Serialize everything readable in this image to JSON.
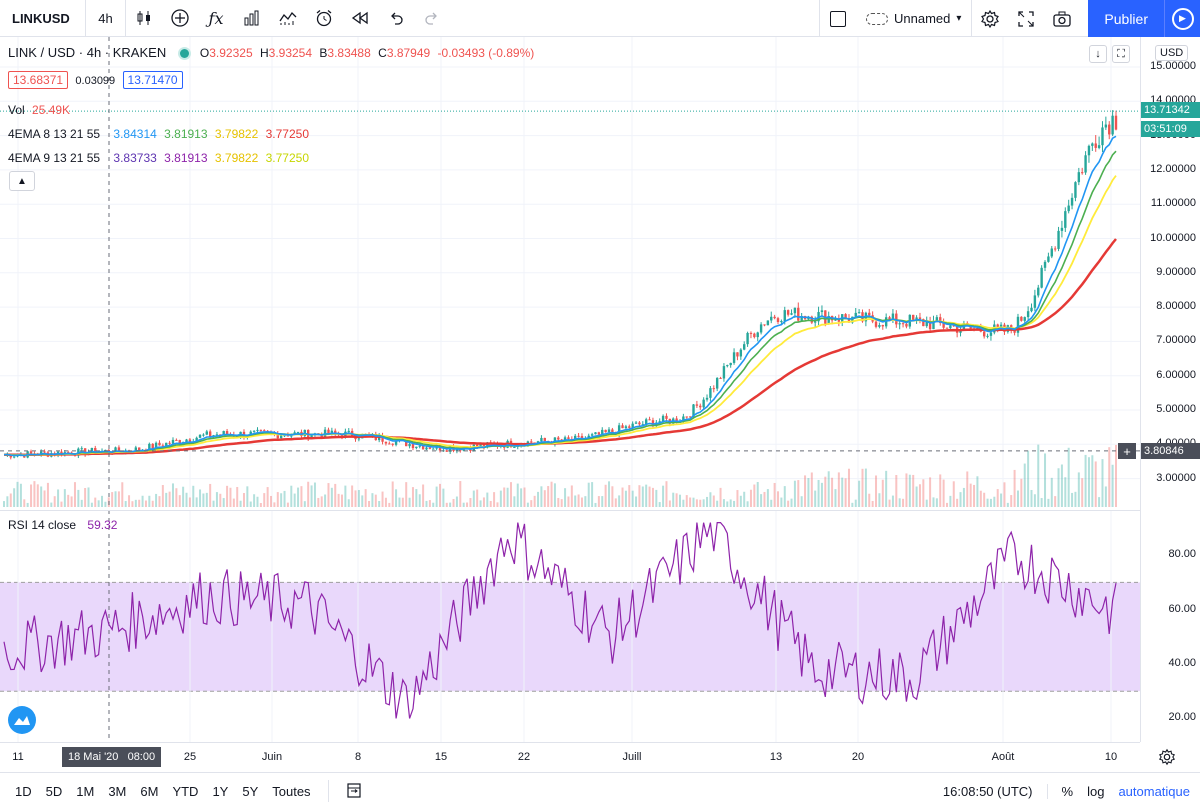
{
  "toolbar": {
    "symbol": "LINKUSD",
    "interval": "4h",
    "layout_name": "Unnamed",
    "publish_label": "Publier"
  },
  "legend": {
    "pair": "LINK / USD · 4h · KRAKEN",
    "open_label": "O",
    "open": "3.92325",
    "high_label": "H",
    "high": "3.93254",
    "low_label": "B",
    "low": "3.83488",
    "close_label": "C",
    "close": "3.87949",
    "change": "-0.03493 (-0.89%)",
    "bid": "13.68371",
    "spread": "0.03099",
    "ask": "13.71470",
    "vol_label": "Vol",
    "vol_value": "25.49K",
    "ema1_label": "4EMA 8 13 21 55",
    "ema1_values": [
      "3.84314",
      "3.81913",
      "3.79822",
      "3.77250"
    ],
    "ema2_label": "4EMA 9 13 21 55",
    "ema2_values": [
      "3.83733",
      "3.81913",
      "3.79822",
      "3.77250"
    ],
    "rsi_label": "RSI 14 close",
    "rsi_value": "59.32"
  },
  "price_axis": {
    "currency": "USD",
    "ticks": [
      "15.00000",
      "14.00000",
      "13.00000",
      "12.00000",
      "11.00000",
      "10.00000",
      "9.00000",
      "8.00000",
      "7.00000",
      "6.00000",
      "5.00000",
      "4.00000",
      "3.00000"
    ],
    "last_price": "13.71342",
    "countdown": "03:51:09",
    "crosshair_price": "3.80846",
    "rsi_ticks": [
      "80.00",
      "60.00",
      "40.00",
      "20.00"
    ]
  },
  "time_axis": {
    "labels": [
      "11",
      "25",
      "Juin",
      "8",
      "15",
      "22",
      "Juill",
      "13",
      "20",
      "Août",
      "10"
    ],
    "crosshair_time": "18 Mai '20   08:00"
  },
  "bottom_bar": {
    "ranges": [
      "1D",
      "5D",
      "1M",
      "3M",
      "6M",
      "YTD",
      "1Y",
      "5Y",
      "Toutes"
    ],
    "clock": "16:08:50 (UTC)",
    "percent": "%",
    "log": "log",
    "auto": "automatique"
  },
  "colors": {
    "ema_blue": "#2196f3",
    "ema_green": "#4caf50",
    "ema_yellow": "#ffeb3b",
    "ema_red": "#e53935",
    "ema_purple": "#7b1fa2",
    "rsi_line": "#8e24aa",
    "rsi_band": "#e9d8fb",
    "up": "#26a69a",
    "down": "#ef5350",
    "accent": "#2962ff"
  },
  "chart_data": {
    "type": "line",
    "title": "LINK / USD · 4h · KRAKEN",
    "x": [
      "11",
      "25",
      "Juin",
      "8",
      "15",
      "22",
      "Juill",
      "13",
      "20",
      "Août",
      "10"
    ],
    "series": [
      {
        "name": "4EMA 8 13 21 55",
        "values": [
          3.7,
          3.8,
          4.3,
          4.3,
          3.9,
          4.1,
          4.7,
          7.8,
          7.6,
          7.3,
          13.5
        ]
      }
    ],
    "ylim": [
      2.5,
      15.5
    ],
    "rsi": {
      "name": "RSI 14 close",
      "values": [
        45,
        52,
        65,
        62,
        25,
        88,
        50,
        90,
        38,
        35,
        80,
        59
      ],
      "upper": 70,
      "lower": 30
    },
    "ylabel": "USD"
  }
}
